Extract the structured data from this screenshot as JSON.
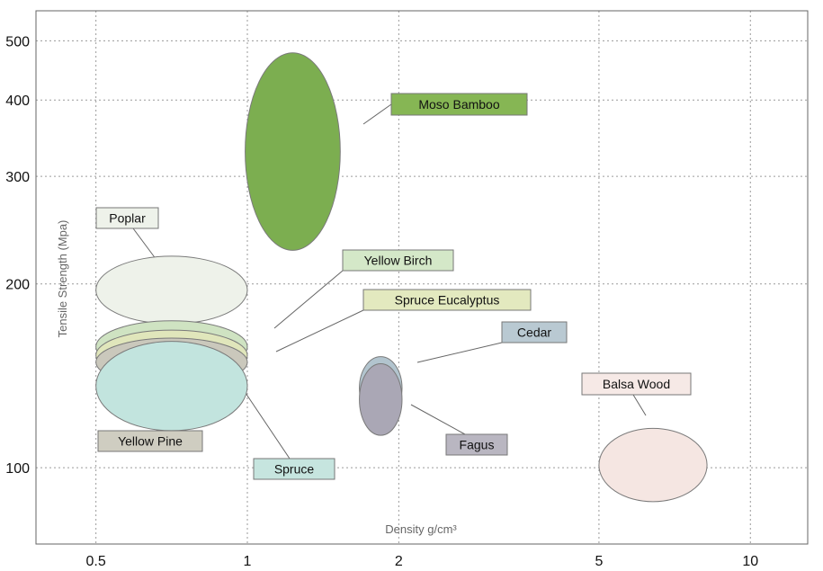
{
  "chart_data": {
    "type": "scatter",
    "subtype": "ellipse-region (material property chart)",
    "x_axis": {
      "label": "Density g/cm³",
      "scale": "log",
      "range": [
        0.38,
        13
      ],
      "ticks": [
        0.5,
        1,
        2,
        5,
        10
      ],
      "tick_labels": [
        "0.5",
        "1",
        "2",
        "5",
        "10"
      ]
    },
    "y_axis": {
      "label": "Tensile Strength (Mpa)",
      "scale": "log",
      "range": [
        75,
        560
      ],
      "ticks": [
        100,
        200,
        300,
        400,
        500
      ],
      "tick_labels": [
        "100",
        "200",
        "300",
        "400",
        "500"
      ]
    },
    "grid": "dotted",
    "series": [
      {
        "name": "Moso Bamboo",
        "x_range": [
          0.99,
          1.53
        ],
        "y_range": [
          227,
          478
        ],
        "fill": "#7cae50",
        "label_fill": "#86b654"
      },
      {
        "name": "Poplar",
        "x_range": [
          0.5,
          1.0
        ],
        "y_range": [
          172,
          222
        ],
        "fill": "#eef2ea",
        "label_fill": "#eef2ea"
      },
      {
        "name": "Yellow Birch",
        "x_range": [
          0.5,
          1.0
        ],
        "y_range": [
          143,
          174
        ],
        "fill": "#cfe3c2",
        "label_fill": "#d4e8c8"
      },
      {
        "name": "Spruce Eucalyptus",
        "x_range": [
          0.5,
          1.0
        ],
        "y_range": [
          139,
          168
        ],
        "fill": "#e0e6bb",
        "label_fill": "#e3e9bf"
      },
      {
        "name": "Yellow Pine",
        "x_range": [
          0.5,
          1.0
        ],
        "y_range": [
          136,
          163
        ],
        "fill": "#cac8bc",
        "label_fill": "#cfcdc1"
      },
      {
        "name": "Spruce",
        "x_range": [
          0.5,
          1.0
        ],
        "y_range": [
          115,
          161
        ],
        "fill": "#c2e4de",
        "label_fill": "#c6e5df"
      },
      {
        "name": "Cedar",
        "x_range": [
          1.67,
          2.03
        ],
        "y_range": [
          120,
          152
        ],
        "fill": "#b2c4ce",
        "label_fill": "#b9c9d2"
      },
      {
        "name": "Fagus",
        "x_range": [
          1.67,
          2.03
        ],
        "y_range": [
          113,
          148
        ],
        "fill": "#aaa7b5",
        "label_fill": "#b9b6c1"
      },
      {
        "name": "Balsa Wood",
        "x_range": [
          5.0,
          8.2
        ],
        "y_range": [
          88,
          116
        ],
        "fill": "#f5e6e2",
        "label_fill": "#f6e9e6"
      }
    ]
  }
}
